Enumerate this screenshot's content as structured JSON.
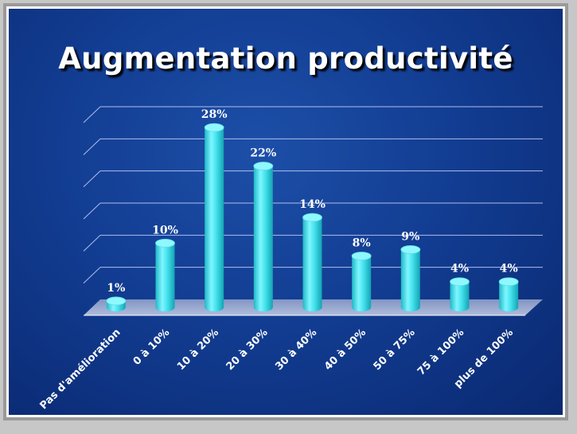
{
  "title": "Augmentation productivité",
  "colors": {
    "background": "#123d92",
    "bar": "#3fe6f0",
    "bar_top": "#8ff8ff",
    "gridline": "#c9d4ff",
    "label": "#ffffff"
  },
  "chart_data": {
    "type": "bar",
    "title": "Augmentation productivité",
    "xlabel": "",
    "ylabel": "",
    "categories": [
      "Pas d'amélioration",
      "0 à 10%",
      "10 à 20%",
      "20 à 30%",
      "30 à 40%",
      "40 à 50%",
      "50 à 75%",
      "75 à 100%",
      "plus de 100%"
    ],
    "values": [
      1,
      10,
      28,
      22,
      14,
      8,
      9,
      4,
      4
    ],
    "data_labels": [
      "1%",
      "10%",
      "28%",
      "22%",
      "14%",
      "8%",
      "9%",
      "4%",
      "4%"
    ],
    "ylim": [
      0,
      30
    ],
    "grid": true,
    "legend": "none",
    "style": "3d-cylinder"
  }
}
